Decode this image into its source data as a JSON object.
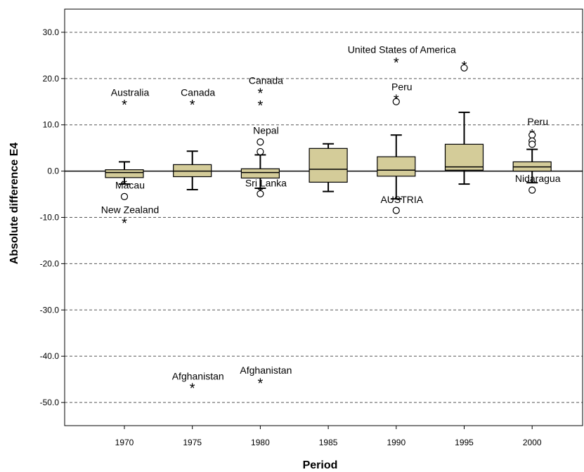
{
  "chart_data": {
    "type": "boxplot",
    "xlabel": "Period",
    "ylabel": "Absolute difference E4",
    "categories": [
      "1970",
      "1975",
      "1980",
      "1985",
      "1990",
      "1995",
      "2000"
    ],
    "ylim": [
      -55,
      35
    ],
    "yticks": [
      30,
      20,
      10,
      0,
      -10,
      -20,
      -30,
      -40,
      -50
    ],
    "ytick_labels": [
      "30.0",
      "20.0",
      "10.0",
      "0.0",
      "-10.0",
      "-20.0",
      "-30.0",
      "-40.0",
      "-50.0"
    ],
    "grid": "horizontal-dashed",
    "box_color": "#d4cc99",
    "boxes": [
      {
        "category": "1970",
        "whisker_low": -2.8,
        "q1": -1.4,
        "median": -0.3,
        "q3": 0.3,
        "whisker_high": 2.0
      },
      {
        "category": "1975",
        "whisker_low": -4.0,
        "q1": -1.2,
        "median": 0.0,
        "q3": 1.4,
        "whisker_high": 4.3
      },
      {
        "category": "1980",
        "whisker_low": -3.7,
        "q1": -1.5,
        "median": -0.3,
        "q3": 0.5,
        "whisker_high": 3.5
      },
      {
        "category": "1985",
        "whisker_low": -4.4,
        "q1": -2.4,
        "median": 0.4,
        "q3": 4.9,
        "whisker_high": 5.9
      },
      {
        "category": "1990",
        "whisker_low": -6.0,
        "q1": -1.1,
        "median": 0.2,
        "q3": 3.1,
        "whisker_high": 7.8
      },
      {
        "category": "1995",
        "whisker_low": -2.8,
        "q1": 0.2,
        "median": 0.9,
        "q3": 5.8,
        "whisker_high": 12.7
      },
      {
        "category": "2000",
        "whisker_low": -2.5,
        "q1": 0.0,
        "median": 0.9,
        "q3": 2.0,
        "whisker_high": 4.7
      }
    ],
    "outliers": [
      {
        "category": "1970",
        "value": 14.7,
        "marker": "star"
      },
      {
        "category": "1970",
        "value": -2.6,
        "marker": "star"
      },
      {
        "category": "1970",
        "value": -5.5,
        "marker": "circle"
      },
      {
        "category": "1970",
        "value": -10.9,
        "marker": "star"
      },
      {
        "category": "1975",
        "value": 14.7,
        "marker": "star"
      },
      {
        "category": "1975",
        "value": -46.6,
        "marker": "star"
      },
      {
        "category": "1980",
        "value": 17.2,
        "marker": "star"
      },
      {
        "category": "1980",
        "value": 14.5,
        "marker": "star"
      },
      {
        "category": "1980",
        "value": 6.3,
        "marker": "circle"
      },
      {
        "category": "1980",
        "value": 4.2,
        "marker": "circle"
      },
      {
        "category": "1980",
        "value": -4.2,
        "marker": "star"
      },
      {
        "category": "1980",
        "value": -4.9,
        "marker": "circle"
      },
      {
        "category": "1980",
        "value": -45.5,
        "marker": "star"
      },
      {
        "category": "1990",
        "value": 23.8,
        "marker": "star"
      },
      {
        "category": "1990",
        "value": 15.8,
        "marker": "star"
      },
      {
        "category": "1990",
        "value": 15.0,
        "marker": "circle"
      },
      {
        "category": "1990",
        "value": -8.5,
        "marker": "circle"
      },
      {
        "category": "1995",
        "value": 23.0,
        "marker": "star"
      },
      {
        "category": "1995",
        "value": 22.3,
        "marker": "circle"
      },
      {
        "category": "2000",
        "value": 8.3,
        "marker": "star"
      },
      {
        "category": "2000",
        "value": 7.8,
        "marker": "circle"
      },
      {
        "category": "2000",
        "value": 6.5,
        "marker": "circle"
      },
      {
        "category": "2000",
        "value": 5.8,
        "marker": "circle"
      },
      {
        "category": "2000",
        "value": -4.1,
        "marker": "circle"
      }
    ],
    "annotations": [
      {
        "text": "Australia",
        "category": "1970",
        "value": 17.0
      },
      {
        "text": "Macau",
        "category": "1970",
        "value": -3.0
      },
      {
        "text": "New Zealand",
        "category": "1970",
        "value": -8.3
      },
      {
        "text": "Canada",
        "category": "1975",
        "value": 17.0
      },
      {
        "text": "Afghanistan",
        "category": "1975",
        "value": -44.3
      },
      {
        "text": "Canada",
        "category": "1980",
        "value": 19.6
      },
      {
        "text": "Nepal",
        "category": "1980",
        "value": 8.8
      },
      {
        "text": "Sri Lanka",
        "category": "1980",
        "value": -2.6
      },
      {
        "text": "Afghanistan",
        "category": "1980",
        "value": -43.0
      },
      {
        "text": "United States of America",
        "category": "1990",
        "value": 26.3
      },
      {
        "text": "Peru",
        "category": "1990",
        "value": 18.2
      },
      {
        "text": "AUSTRIA",
        "category": "1990",
        "value": -6.1
      },
      {
        "text": "Peru",
        "category": "2000",
        "value": 10.7
      },
      {
        "text": "Nidaragua",
        "category": "2000",
        "value": -1.6
      }
    ]
  }
}
